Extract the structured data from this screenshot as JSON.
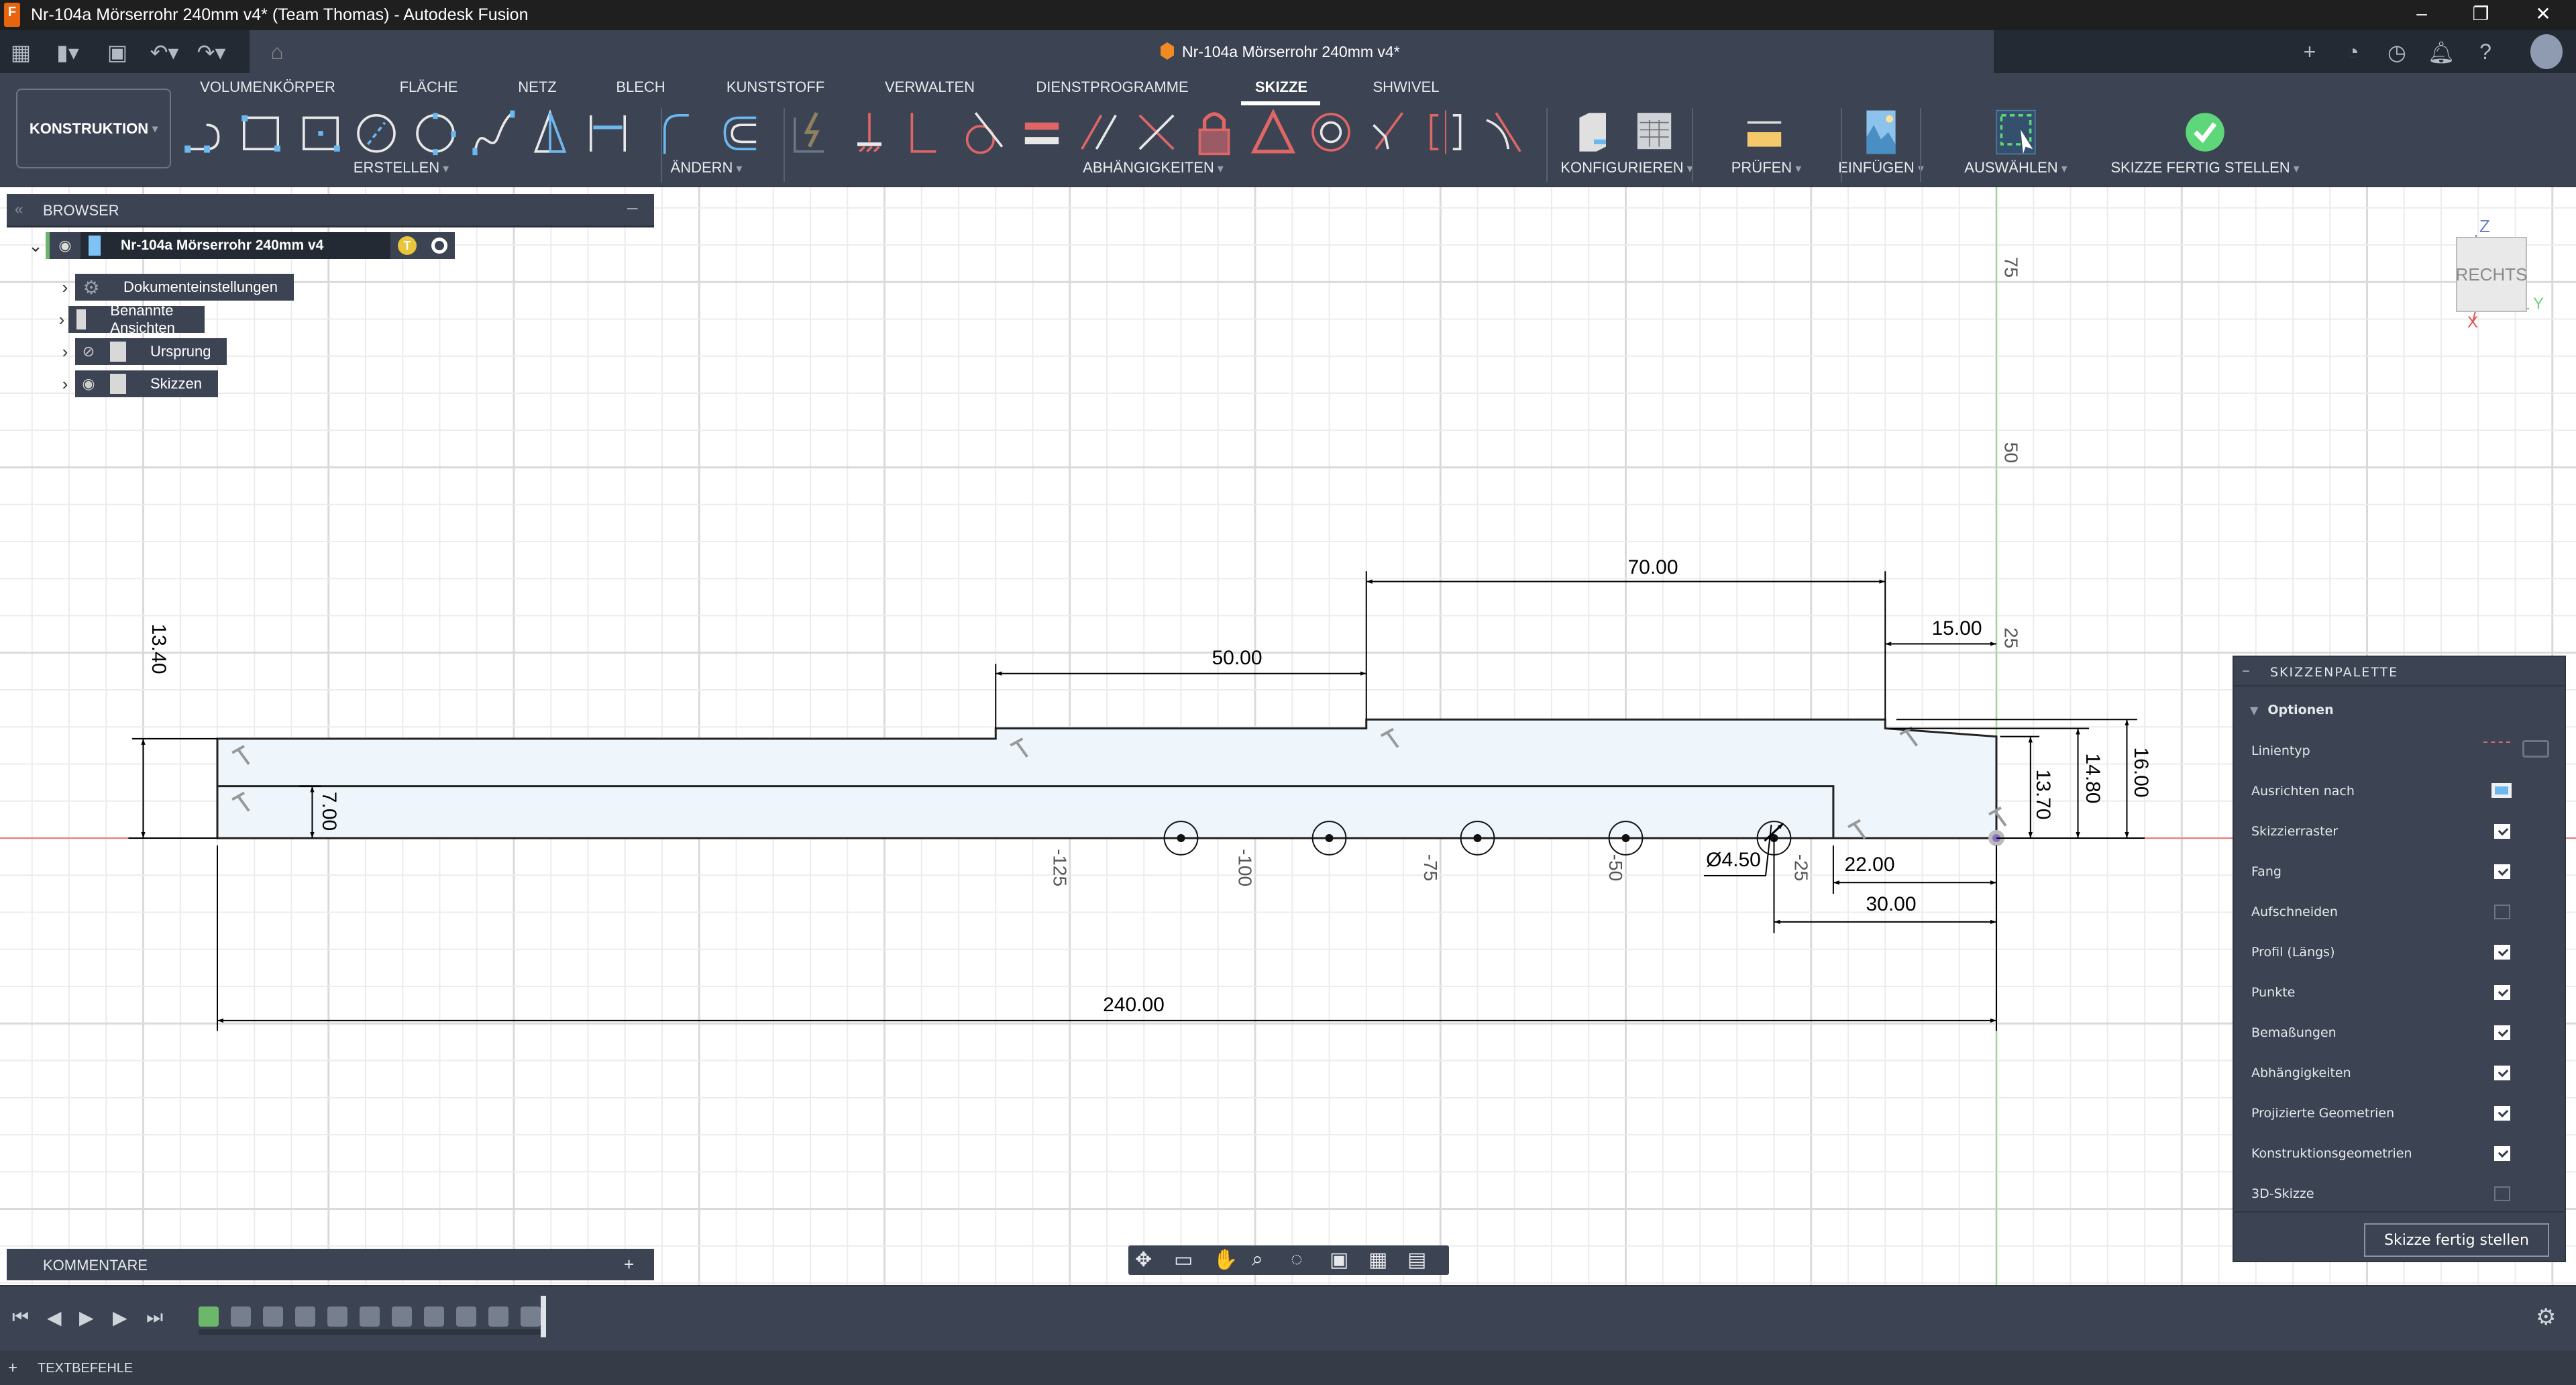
{
  "window": {
    "title": "Nr-104a Mörserrohr 240mm v4* (Team Thomas) - Autodesk Fusion",
    "app_icon": "fusion-logo",
    "logo_text": "F",
    "controls": [
      "minimize",
      "restore",
      "close"
    ]
  },
  "quick_access": {
    "doc_tab_title": "Nr-104a Mörserrohr 240mm v4*",
    "left_icons": [
      "grid-icon",
      "file-icon",
      "save-icon",
      "undo-icon",
      "redo-icon",
      "home-icon"
    ],
    "right_icons": [
      "close-tab-icon",
      "new-tab-icon",
      "extensions-icon",
      "job-status-icon",
      "notifications-icon",
      "help-icon",
      "avatar"
    ]
  },
  "ribbon": {
    "workspace": "KONSTRUKTION",
    "tabs": [
      "VOLUMENKÖRPER",
      "FLÄCHE",
      "NETZ",
      "BLECH",
      "KUNSTSTOFF",
      "VERWALTEN",
      "DIENSTPROGRAMME",
      "SKIZZE",
      "SHWIVEL"
    ],
    "active_tab": "SKIZZE",
    "groups": [
      "ERSTELLEN",
      "ÄNDERN",
      "ABHÄNGIGKEITEN",
      "KONFIGURIEREN",
      "PRÜFEN",
      "EINFÜGEN",
      "AUSWÄHLEN",
      "SKIZZE FERTIG STELLEN"
    ],
    "accent": "#6bb8f0",
    "constraint_color": "#e06666",
    "finish_color": "#5ed67a"
  },
  "browser": {
    "title": "BROWSER",
    "root": "Nr-104a Mörserrohr 240mm v4",
    "root_badge": "T",
    "items": [
      {
        "label": "Dokumenteinstellungen",
        "icon": "gear-icon",
        "visibility": null
      },
      {
        "label": "Benannte Ansichten",
        "icon": "folder-icon",
        "visibility": null
      },
      {
        "label": "Ursprung",
        "icon": "folder-icon",
        "visibility": "hidden"
      },
      {
        "label": "Skizzen",
        "icon": "folder-icon",
        "visibility": "visible"
      }
    ]
  },
  "viewcube": {
    "face": "RECHTS",
    "x": "X",
    "y": "Y",
    "z": "Z"
  },
  "sketch": {
    "dimensions": {
      "d_13_40": "13.40",
      "d_7_00": "7.00",
      "d_50_00": "50.00",
      "d_70_00": "70.00",
      "d_15_00": "15.00",
      "d_16_00": "16.00",
      "d_14_80": "14.80",
      "d_13_70": "13.70",
      "d_22_00": "22.00",
      "d_30_00": "30.00",
      "d_240_00": "240.00",
      "d_hole": "Ø4.50"
    },
    "axis_ticks_x": [
      "-125",
      "-100",
      "-75",
      "-50",
      "-25"
    ],
    "axis_ticks_y": [
      "25",
      "50",
      "75"
    ],
    "profile_fill": "#eef6fc"
  },
  "palette": {
    "title": "SKIZZENPALETTE",
    "section": "Optionen",
    "linetype_label": "Linientyp",
    "look_at_label": "Ausrichten nach",
    "options": [
      {
        "label": "Skizzierraster",
        "checked": true
      },
      {
        "label": "Fang",
        "checked": true
      },
      {
        "label": "Aufschneiden",
        "checked": false
      },
      {
        "label": "Profil (Längs)",
        "checked": true
      },
      {
        "label": "Punkte",
        "checked": true
      },
      {
        "label": "Bemaßungen",
        "checked": true
      },
      {
        "label": "Abhängigkeiten",
        "checked": true
      },
      {
        "label": "Projizierte Geometrien",
        "checked": true
      },
      {
        "label": "Konstruktionsgeometrien",
        "checked": true
      },
      {
        "label": "3D-Skizze",
        "checked": false
      }
    ],
    "finish_button": "Skizze fertig stellen"
  },
  "comments": {
    "title": "KOMMENTARE",
    "add": "+"
  },
  "text_commands": {
    "title": "TEXTBEFEHLE",
    "expand": "+"
  }
}
